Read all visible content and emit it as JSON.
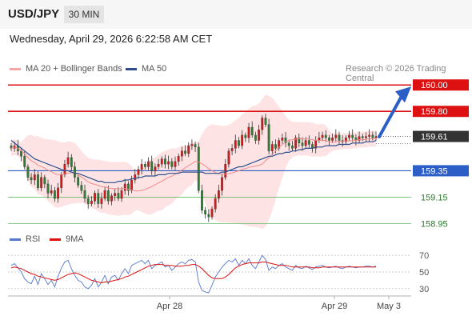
{
  "header": {
    "symbol": "USD/JPY",
    "timeframe": "30 MIN",
    "datetime": "Wednesday, April 29, 2026 6:22:58 AM CET"
  },
  "legend_main": [
    {
      "label": "MA 20 + Bollinger Bands",
      "color": "#f4a6a6"
    },
    {
      "label": "MA 50",
      "color": "#2c4f8c"
    }
  ],
  "copyright": "Research © 2026 Trading Central",
  "legend_rsi": [
    {
      "label": "RSI",
      "color": "#5577cc"
    },
    {
      "label": "9MA",
      "color": "#dd1111"
    }
  ],
  "chart_data": [
    {
      "type": "candlestick",
      "ylim": [
        158.91,
        160.05
      ],
      "x_ticks": [
        "Apr 28",
        "Apr 29",
        "May 3"
      ],
      "levels": [
        {
          "value": "160.00",
          "style": "resistance-strong"
        },
        {
          "value": "159.80",
          "style": "resistance"
        },
        {
          "value": "159.61",
          "style": "current"
        },
        {
          "value": "159.35",
          "style": "pivot"
        },
        {
          "value": "159.15",
          "style": "support"
        },
        {
          "value": "158.95",
          "style": "support"
        }
      ],
      "closes": [
        159.52,
        159.54,
        159.5,
        159.46,
        159.38,
        159.3,
        159.28,
        159.32,
        159.22,
        159.3,
        159.25,
        159.18,
        159.2,
        159.14,
        159.22,
        159.32,
        159.4,
        159.45,
        159.38,
        159.3,
        159.24,
        159.2,
        159.14,
        159.1,
        159.12,
        159.18,
        159.1,
        159.14,
        159.2,
        159.12,
        159.16,
        159.18,
        159.14,
        159.2,
        159.25,
        159.2,
        159.28,
        159.32,
        159.36,
        159.4,
        159.38,
        159.42,
        159.35,
        159.38,
        159.4,
        159.44,
        159.4,
        159.42,
        159.38,
        159.42,
        159.46,
        159.5,
        159.48,
        159.54,
        159.55,
        159.53,
        159.2,
        159.05,
        159.02,
        159.0,
        159.06,
        159.14,
        159.2,
        159.3,
        159.4,
        159.5,
        159.52,
        159.58,
        159.54,
        159.62,
        159.6,
        159.68,
        159.62,
        159.58,
        159.66,
        159.75,
        159.7,
        159.5,
        159.55,
        159.52,
        159.58,
        159.6,
        159.56,
        159.54,
        159.52,
        159.6,
        159.56,
        159.54,
        159.58,
        159.55,
        159.52,
        159.58,
        159.6,
        159.62,
        159.6,
        159.58,
        159.6,
        159.62,
        159.58,
        159.57,
        159.6,
        159.62,
        159.6,
        159.58,
        159.61,
        159.6,
        159.61,
        159.62,
        159.6,
        159.61
      ],
      "ma50": [
        159.58,
        159.56,
        159.54,
        159.52,
        159.5,
        159.48,
        159.46,
        159.44,
        159.43,
        159.42,
        159.41,
        159.4,
        159.39,
        159.38,
        159.37,
        159.36,
        159.35,
        159.35,
        159.34,
        159.33,
        159.33,
        159.32,
        159.31,
        159.3,
        159.29,
        159.28,
        159.27,
        159.27,
        159.26,
        159.26,
        159.26,
        159.26,
        159.27,
        159.27,
        159.28,
        159.28,
        159.29,
        159.29,
        159.3,
        159.3,
        159.31,
        159.31,
        159.31,
        159.31,
        159.32,
        159.32,
        159.32,
        159.33,
        159.33,
        159.33,
        159.33,
        159.34,
        159.34,
        159.34,
        159.34,
        159.34,
        159.34,
        159.34,
        159.33,
        159.33,
        159.33,
        159.33,
        159.33,
        159.34,
        159.34,
        159.35,
        159.36,
        159.37,
        159.38,
        159.38,
        159.39,
        159.4,
        159.41,
        159.42,
        159.43,
        159.44,
        159.45,
        159.46,
        159.46,
        159.47,
        159.48,
        159.48,
        159.49,
        159.49,
        159.5,
        159.5,
        159.51,
        159.51,
        159.52,
        159.52,
        159.52,
        159.53,
        159.53,
        159.53,
        159.54,
        159.54,
        159.54,
        159.54,
        159.55,
        159.55,
        159.55,
        159.55,
        159.56,
        159.56,
        159.56,
        159.56,
        159.57,
        159.57,
        159.57,
        159.58
      ]
    },
    {
      "type": "line",
      "title": "RSI",
      "ylim": [
        25,
        75
      ],
      "y_ticks": [
        "70",
        "50",
        "30"
      ],
      "rsi": [
        58,
        60,
        55,
        50,
        42,
        38,
        36,
        45,
        35,
        48,
        42,
        35,
        40,
        32,
        45,
        55,
        62,
        64,
        54,
        46,
        40,
        38,
        32,
        30,
        34,
        42,
        32,
        38,
        46,
        36,
        44,
        46,
        40,
        48,
        54,
        48,
        58,
        60,
        62,
        64,
        60,
        64,
        54,
        58,
        60,
        62,
        56,
        58,
        52,
        56,
        60,
        62,
        60,
        64,
        65,
        62,
        38,
        28,
        26,
        25,
        34,
        44,
        50,
        56,
        60,
        64,
        62,
        66,
        58,
        64,
        60,
        66,
        58,
        54,
        62,
        70,
        65,
        52,
        56,
        54,
        58,
        60,
        56,
        54,
        52,
        58,
        55,
        54,
        57,
        55,
        53,
        56,
        57,
        58,
        56,
        55,
        56,
        57,
        55,
        54,
        56,
        57,
        56,
        55,
        56,
        56,
        57,
        57,
        56,
        57
      ],
      "ma9": [
        55,
        56,
        55,
        54,
        52,
        50,
        48,
        47,
        45,
        44,
        43,
        42,
        41,
        40,
        41,
        43,
        45,
        47,
        48,
        49,
        48,
        46,
        44,
        42,
        40,
        39,
        38,
        37,
        38,
        38,
        39,
        40,
        41,
        42,
        44,
        45,
        47,
        49,
        51,
        53,
        55,
        57,
        58,
        59,
        59,
        59,
        58,
        58,
        58,
        57,
        57,
        57,
        58,
        58,
        59,
        59,
        57,
        54,
        50,
        46,
        43,
        42,
        42,
        42,
        44,
        47,
        51,
        55,
        57,
        59,
        60,
        61,
        61,
        61,
        61,
        62,
        62,
        61,
        60,
        59,
        58,
        58,
        58,
        57,
        56,
        56,
        56,
        56,
        56,
        56,
        55,
        55,
        55,
        56,
        56,
        56,
        56,
        56,
        56,
        56,
        56,
        56,
        56,
        56,
        56,
        56,
        56,
        56,
        56,
        56
      ]
    }
  ]
}
